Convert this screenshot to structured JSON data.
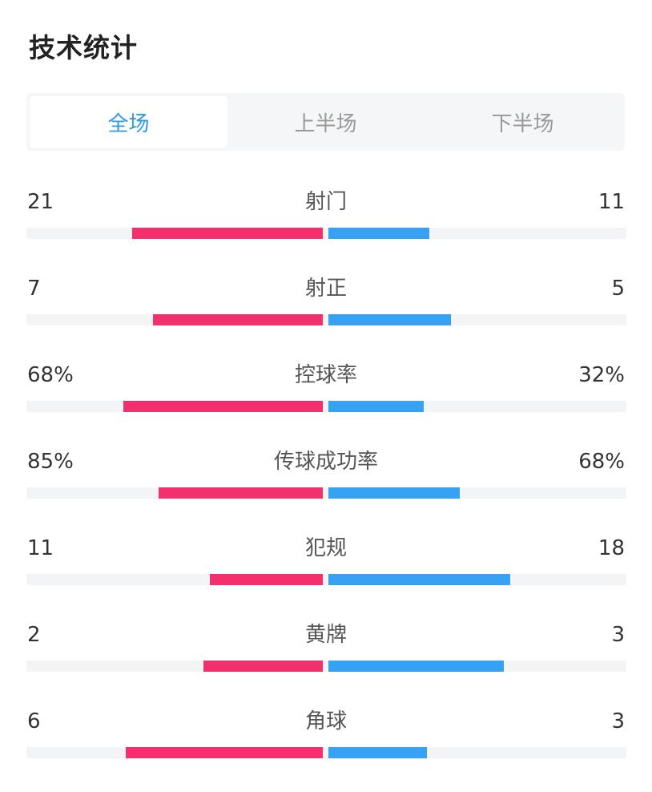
{
  "title": "技术统计",
  "tabs": [
    {
      "label": "全场",
      "active": true
    },
    {
      "label": "上半场",
      "active": false
    },
    {
      "label": "下半场",
      "active": false
    }
  ],
  "colors": {
    "home_bar": "#f42f6e",
    "away_bar": "#37a2f4",
    "active_tab": "#2c9ae8"
  },
  "stats": [
    {
      "label": "射门",
      "home": "21",
      "away": "11",
      "home_fraction": 0.64,
      "away_fraction": 0.34
    },
    {
      "label": "射正",
      "home": "7",
      "away": "5",
      "home_fraction": 0.57,
      "away_fraction": 0.41
    },
    {
      "label": "控球率",
      "home": "68%",
      "away": "32%",
      "home_fraction": 0.67,
      "away_fraction": 0.32
    },
    {
      "label": "传球成功率",
      "home": "85%",
      "away": "68%",
      "home_fraction": 0.55,
      "away_fraction": 0.44
    },
    {
      "label": "犯规",
      "home": "11",
      "away": "18",
      "home_fraction": 0.38,
      "away_fraction": 0.61
    },
    {
      "label": "黄牌",
      "home": "2",
      "away": "3",
      "home_fraction": 0.4,
      "away_fraction": 0.59
    },
    {
      "label": "角球",
      "home": "6",
      "away": "3",
      "home_fraction": 0.66,
      "away_fraction": 0.33
    }
  ]
}
